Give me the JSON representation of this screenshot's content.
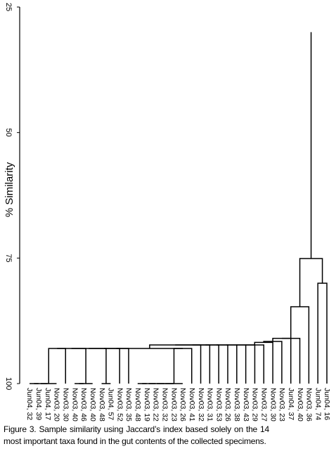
{
  "chart_data": {
    "type": "dendrogram",
    "y_label": "% Similarity",
    "ylim": [
      25,
      100
    ],
    "yticks": [
      25,
      50,
      75,
      100
    ],
    "color": "#000000",
    "leaves": [
      "Jun04, 32",
      "Jun04, 39",
      "Jun04, 17",
      "Nov03, 20",
      "Nov03, 30",
      "Nov03, 40",
      "Nov03, 46",
      "Nov03, 40",
      "Nov03, 48",
      "Jun04, 57",
      "Nov03, 52",
      "Nov03, 35",
      "Nov03, 48",
      "Nov03, 19",
      "Nov03, 22",
      "Nov03, 32",
      "Nov03, 23",
      "Nov03, 26",
      "Nov03, 41",
      "Nov03, 32",
      "Nov03, 31",
      "Nov03, 53",
      "Nov03, 26",
      "Nov03, 38",
      "Nov03, 43",
      "Nov03, 29",
      "Nov03, 27",
      "Nov03, 30",
      "Nov03, 23",
      "Jun04, 37",
      "Nov03, 40",
      "Nov03, 36",
      "Jun04, 74",
      "Jun04, 16"
    ],
    "merges": [
      [
        0,
        1,
        100
      ],
      [
        34,
        2,
        100
      ],
      [
        35,
        3,
        100
      ],
      [
        5,
        6,
        100
      ],
      [
        37,
        7,
        100
      ],
      [
        8,
        9,
        100
      ],
      [
        12,
        13,
        100
      ],
      [
        40,
        14,
        100
      ],
      [
        41,
        15,
        100
      ],
      [
        42,
        16,
        100
      ],
      [
        43,
        17,
        100
      ],
      [
        36,
        4,
        93
      ],
      [
        45,
        38,
        93
      ],
      [
        46,
        39,
        93
      ],
      [
        47,
        10,
        93
      ],
      [
        48,
        11,
        93
      ],
      [
        44,
        18,
        93
      ],
      [
        49,
        50,
        93
      ],
      [
        51,
        19,
        92.3
      ],
      [
        52,
        20,
        92.3
      ],
      [
        53,
        21,
        92.3
      ],
      [
        54,
        22,
        92.3
      ],
      [
        55,
        23,
        92.3
      ],
      [
        56,
        24,
        92.3
      ],
      [
        57,
        25,
        92.3
      ],
      [
        58,
        26,
        92.3
      ],
      [
        59,
        27,
        91.8
      ],
      [
        60,
        28,
        91.6
      ],
      [
        61,
        29,
        91
      ],
      [
        62,
        30,
        91
      ],
      [
        63,
        31,
        84.7
      ],
      [
        32,
        33,
        80
      ],
      [
        64,
        65,
        75.1
      ]
    ],
    "root_height": 30,
    "caption": "Figure 3. Sample similarity using Jaccard’s index based solely on the 14 most important taxa found in the gut contents of the collected specimens."
  }
}
